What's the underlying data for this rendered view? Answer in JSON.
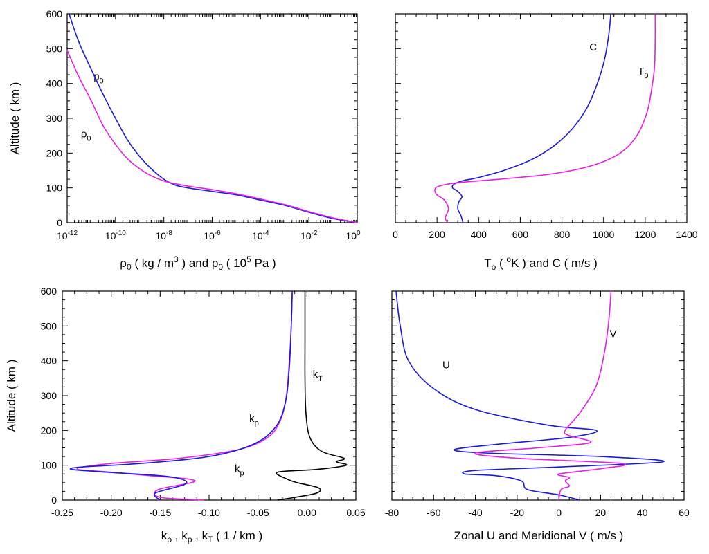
{
  "colors": {
    "blue": "#1a1adc",
    "magenta": "#e61ee6",
    "black": "#000000"
  },
  "chart_data": [
    {
      "type": "line",
      "id": "tl",
      "xscale": "log",
      "xlim": [
        1e-12,
        1.0
      ],
      "ylim": [
        0,
        600
      ],
      "xticks": [
        1e-12,
        1e-10,
        1e-08,
        1e-06,
        0.0001,
        0.01,
        1.0
      ],
      "xtick_labels": [
        {
          "base": "10",
          "exp": "-12"
        },
        {
          "base": "10",
          "exp": "-10"
        },
        {
          "base": "10",
          "exp": "-8"
        },
        {
          "base": "10",
          "exp": "-6"
        },
        {
          "base": "10",
          "exp": "-4"
        },
        {
          "base": "10",
          "exp": "-2"
        },
        {
          "base": "10",
          "exp": "0"
        }
      ],
      "yticks": [
        0,
        100,
        200,
        300,
        400,
        500,
        600
      ],
      "ylabel": "Altitude ( km )",
      "xlabel": {
        "t1": "ρ",
        "s1": "0",
        "t2": " ( kg / m",
        "p2": "3",
        "t3": " )  and  p",
        "s3": "0",
        "t4": " ( 10",
        "p4": "5",
        "t5": " Pa )"
      },
      "series": [
        {
          "name": "p0",
          "label": {
            "main": "p",
            "sub": "0"
          },
          "color": "blue",
          "x": [
            1.0,
            0.1,
            0.01,
            0.001,
            0.0001,
            1e-05,
            1e-06,
            1e-07,
            3e-08,
            1e-08,
            3e-09,
            1e-09,
            3e-10,
            1e-10,
            3e-11,
            1e-11,
            3e-12,
            1.2e-12
          ],
          "y": [
            0,
            12,
            30,
            50,
            65,
            80,
            90,
            100,
            108,
            125,
            155,
            190,
            240,
            300,
            370,
            440,
            520,
            600
          ]
        },
        {
          "name": "rho0",
          "label": {
            "main": "ρ",
            "sub": "0"
          },
          "color": "magenta",
          "x": [
            1.0,
            0.1,
            0.01,
            0.001,
            0.0001,
            1e-05,
            1e-06,
            1e-07,
            3e-08,
            1e-08,
            3e-09,
            1e-09,
            3e-10,
            1e-10,
            3e-11,
            1e-11,
            3e-12,
            1e-12
          ],
          "y": [
            0,
            14,
            32,
            52,
            68,
            83,
            95,
            105,
            112,
            120,
            135,
            155,
            185,
            225,
            280,
            350,
            420,
            495
          ]
        }
      ],
      "annotations": [
        {
          "series": "p0",
          "x": 2e-11,
          "y": 410
        },
        {
          "series": "rho0",
          "x": 6e-12,
          "y": 245
        }
      ]
    },
    {
      "type": "line",
      "id": "tr",
      "xlim": [
        0,
        1400
      ],
      "ylim": [
        0,
        600
      ],
      "xticks": [
        0,
        200,
        400,
        600,
        800,
        1000,
        1200,
        1400
      ],
      "xtick_labels": [
        "0",
        "200",
        "400",
        "600",
        "800",
        "1000",
        "1200",
        "1400"
      ],
      "yticks": [
        0,
        100,
        200,
        300,
        400,
        500,
        600
      ],
      "xlabel": {
        "t1": "T",
        "s1": "o",
        "t2": " ( ",
        "p2": "o",
        "t3": "K ) and C ( m/s )"
      },
      "series": [
        {
          "name": "C",
          "label": {
            "main": "C",
            "sub": ""
          },
          "color": "blue",
          "x": [
            325,
            315,
            300,
            305,
            320,
            300,
            275,
            280,
            320,
            400,
            520,
            650,
            760,
            850,
            920,
            970,
            1005,
            1025,
            1035
          ],
          "y": [
            0,
            20,
            40,
            60,
            75,
            90,
            100,
            110,
            120,
            130,
            150,
            180,
            220,
            270,
            330,
            400,
            470,
            540,
            600
          ]
        },
        {
          "name": "T0",
          "label": {
            "main": "T",
            "sub": "0"
          },
          "color": "magenta",
          "x": [
            250,
            240,
            255,
            235,
            200,
            190,
            210,
            300,
            500,
            750,
            950,
            1080,
            1160,
            1210,
            1235,
            1245,
            1248,
            1248
          ],
          "y": [
            0,
            15,
            40,
            65,
            80,
            95,
            105,
            115,
            125,
            140,
            165,
            200,
            250,
            320,
            400,
            450,
            520,
            600
          ]
        }
      ],
      "annotations": [
        {
          "series": "C",
          "x": 950,
          "y": 495
        },
        {
          "series": "T0",
          "x": 1190,
          "y": 425
        }
      ]
    },
    {
      "type": "line",
      "id": "bl",
      "xlim": [
        -0.25,
        0.05
      ],
      "ylim": [
        0,
        600
      ],
      "xticks": [
        -0.25,
        -0.2,
        -0.15,
        -0.1,
        -0.05,
        0.0,
        0.05
      ],
      "xtick_labels": [
        "-0.25",
        "-0.20",
        "-0.15",
        "-0.10",
        "-0.05",
        "0.00",
        "0.05"
      ],
      "yticks": [
        0,
        100,
        200,
        300,
        400,
        500,
        600
      ],
      "ylabel": "Altitude ( km )",
      "xlabel": {
        "t1": "k",
        "s1": "ρ",
        "t2": " , k",
        "s2": "p",
        "t3": " , k",
        "s3": "T",
        "t4": " ( 1 / km )"
      },
      "series": [
        {
          "name": "kT",
          "label": {
            "main": "k",
            "sub": "T"
          },
          "color": "black",
          "x": [
            -0.03,
            -0.012,
            0.01,
            0.012,
            -0.01,
            -0.02,
            -0.03,
            0.01,
            0.04,
            0.03,
            0.038,
            0.015,
            0.003,
            -0.001,
            -0.002,
            -0.002,
            -0.002
          ],
          "y": [
            0,
            8,
            20,
            35,
            50,
            60,
            80,
            88,
            100,
            110,
            120,
            140,
            180,
            250,
            350,
            450,
            600
          ]
        },
        {
          "name": "krho",
          "label": {
            "main": "k",
            "sub": "ρ"
          },
          "color": "magenta",
          "x": [
            -0.105,
            -0.15,
            -0.152,
            -0.118,
            -0.12,
            -0.16,
            -0.2,
            -0.235,
            -0.2,
            -0.13,
            -0.07,
            -0.04,
            -0.027,
            -0.021,
            -0.018,
            -0.016,
            -0.015
          ],
          "y": [
            0,
            8,
            30,
            50,
            60,
            70,
            80,
            90,
            105,
            120,
            145,
            180,
            230,
            300,
            400,
            500,
            600
          ]
        },
        {
          "name": "kp",
          "label": {
            "main": "k",
            "sub": "p"
          },
          "color": "blue",
          "x": [
            -0.15,
            -0.155,
            -0.125,
            -0.128,
            -0.15,
            -0.205,
            -0.24,
            -0.23,
            -0.17,
            -0.1,
            -0.055,
            -0.032,
            -0.022,
            -0.018,
            -0.016,
            -0.015
          ],
          "y": [
            0,
            20,
            45,
            60,
            70,
            80,
            88,
            95,
            105,
            125,
            160,
            210,
            280,
            380,
            500,
            600
          ]
        }
      ],
      "annotations": [
        {
          "series": "kT",
          "x": 0.011,
          "y": 352
        },
        {
          "series": "krho",
          "x": -0.054,
          "y": 225
        },
        {
          "series": "kp",
          "x": -0.069,
          "y": 80
        }
      ]
    },
    {
      "type": "line",
      "id": "br",
      "xlim": [
        -80,
        60
      ],
      "ylim": [
        0,
        600
      ],
      "xticks": [
        -80,
        -60,
        -40,
        -20,
        0,
        20,
        40,
        60
      ],
      "xtick_labels": [
        "-80",
        "-60",
        "-40",
        "-20",
        "0",
        "20",
        "40",
        "60"
      ],
      "yticks": [
        0,
        100,
        200,
        300,
        400,
        500,
        600
      ],
      "xlabel": {
        "t1": "Zonal U and Meridional V ( m/s )"
      },
      "series": [
        {
          "name": "U",
          "label": {
            "main": "U",
            "sub": ""
          },
          "color": "blue",
          "x": [
            10,
            0,
            -15,
            -18,
            -30,
            -45,
            -40,
            0,
            50,
            20,
            -35,
            -50,
            -30,
            5,
            18,
            -5,
            -40,
            -60,
            -72,
            -76,
            -78
          ],
          "y": [
            0,
            15,
            30,
            55,
            70,
            75,
            85,
            95,
            110,
            125,
            135,
            145,
            160,
            180,
            200,
            215,
            260,
            320,
            400,
            500,
            600
          ]
        },
        {
          "name": "V",
          "label": {
            "main": "V",
            "sub": ""
          },
          "color": "magenta",
          "x": [
            0,
            1,
            5,
            3,
            5,
            0,
            20,
            30,
            -20,
            -40,
            -10,
            15,
            5,
            3,
            10,
            18,
            22,
            24,
            25
          ],
          "y": [
            0,
            30,
            40,
            55,
            65,
            75,
            90,
            105,
            120,
            135,
            150,
            165,
            185,
            200,
            250,
            330,
            430,
            520,
            600
          ]
        }
      ],
      "annotations": [
        {
          "series": "U",
          "x": -54,
          "y": 378
        },
        {
          "series": "V",
          "x": 26,
          "y": 468
        }
      ]
    }
  ]
}
